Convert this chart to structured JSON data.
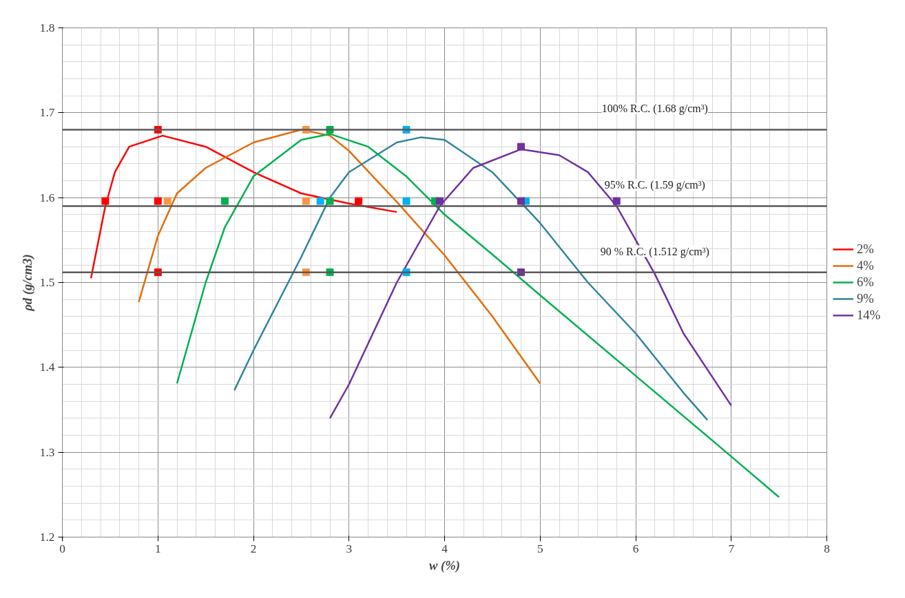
{
  "chart_data": {
    "type": "line",
    "xlabel": "w (%)",
    "ylabel": "ρd (g/cm3)",
    "xlim": [
      0,
      8
    ],
    "ylim": [
      1.2,
      1.8
    ],
    "xticks": [
      0,
      1,
      2,
      3,
      4,
      5,
      6,
      7,
      8
    ],
    "yticks": [
      1.2,
      1.3,
      1.4,
      1.5,
      1.6,
      1.7,
      1.8
    ],
    "grid": true,
    "legend": "right",
    "line_style": "solid",
    "marker": "none",
    "series": [
      {
        "name": "2%",
        "color": "#ff0000",
        "x": [
          0.3,
          0.45,
          0.55,
          0.7,
          1.05,
          1.5,
          2,
          2.5,
          3,
          3.5
        ],
        "values": [
          1.505,
          1.59,
          1.63,
          1.66,
          1.673,
          1.66,
          1.63,
          1.605,
          1.593,
          1.583
        ]
      },
      {
        "name": "4%",
        "color": "#e36c09",
        "x": [
          0.8,
          1,
          1.2,
          1.5,
          2,
          2.5,
          2.8,
          3,
          3.5,
          4,
          4.5,
          5
        ],
        "values": [
          1.477,
          1.555,
          1.605,
          1.635,
          1.665,
          1.68,
          1.673,
          1.655,
          1.595,
          1.532,
          1.46,
          1.381
        ]
      },
      {
        "name": "6%",
        "color": "#00b050",
        "x": [
          1.2,
          1.5,
          1.7,
          2,
          2.5,
          2.8,
          3.2,
          3.6,
          4,
          4.5,
          5,
          6,
          7,
          7.5
        ],
        "values": [
          1.381,
          1.5,
          1.565,
          1.625,
          1.668,
          1.675,
          1.66,
          1.625,
          1.58,
          1.533,
          1.485,
          1.39,
          1.295,
          1.247
        ]
      },
      {
        "name": "9%",
        "color": "#31849b",
        "x": [
          1.8,
          2,
          2.5,
          2.8,
          3,
          3.5,
          3.75,
          4,
          4.5,
          5,
          5.5,
          6,
          6.5,
          6.75
        ],
        "values": [
          1.373,
          1.42,
          1.53,
          1.6,
          1.63,
          1.665,
          1.671,
          1.668,
          1.63,
          1.57,
          1.5,
          1.44,
          1.37,
          1.338
        ]
      },
      {
        "name": "14%",
        "color": "#7030a0",
        "x": [
          2.8,
          3,
          3.5,
          3.95,
          4.3,
          4.8,
          5.2,
          5.5,
          5.8,
          6.2,
          6.5,
          7
        ],
        "values": [
          1.34,
          1.38,
          1.5,
          1.59,
          1.635,
          1.657,
          1.65,
          1.63,
          1.59,
          1.51,
          1.44,
          1.355
        ]
      },
      {
        "type": "scatter",
        "marker": "square",
        "color": "#ff0000",
        "x": [
          1,
          0.45,
          1,
          3.1,
          1
        ],
        "values": [
          1.68,
          1.596,
          1.596,
          1.596,
          1.512
        ]
      },
      {
        "type": "scatter",
        "marker": "square",
        "color": "#f79646",
        "x": [
          2.55,
          1.1,
          2.55,
          2.55
        ],
        "values": [
          1.68,
          1.596,
          1.596,
          1.512
        ]
      },
      {
        "type": "scatter",
        "marker": "square",
        "color": "#00b050",
        "x": [
          2.8,
          1.7,
          2.8,
          3.9,
          2.8
        ],
        "values": [
          1.68,
          1.596,
          1.596,
          1.596,
          1.512
        ]
      },
      {
        "type": "scatter",
        "marker": "square",
        "color": "#00b0f0",
        "x": [
          3.6,
          2.7,
          3.6,
          4.85,
          3.6
        ],
        "values": [
          1.68,
          1.596,
          1.596,
          1.596,
          1.512
        ]
      },
      {
        "type": "scatter",
        "marker": "square",
        "color": "#7030a0",
        "x": [
          4.8,
          3.95,
          4.8,
          5.8,
          4.8
        ],
        "values": [
          1.66,
          1.596,
          1.596,
          1.596,
          1.512
        ]
      }
    ],
    "ref_lines": [
      {
        "axis": "y",
        "value": 1.68,
        "label": "100% R.C. (1.68 g/cm³)",
        "color": "#595959"
      },
      {
        "axis": "y",
        "value": 1.59,
        "label": "95% R.C. (1.59 g/cm³)",
        "color": "#595959"
      },
      {
        "axis": "y",
        "value": 1.512,
        "label": "90 % R.C. (1.512 g/cm³)",
        "color": "#595959"
      }
    ]
  }
}
